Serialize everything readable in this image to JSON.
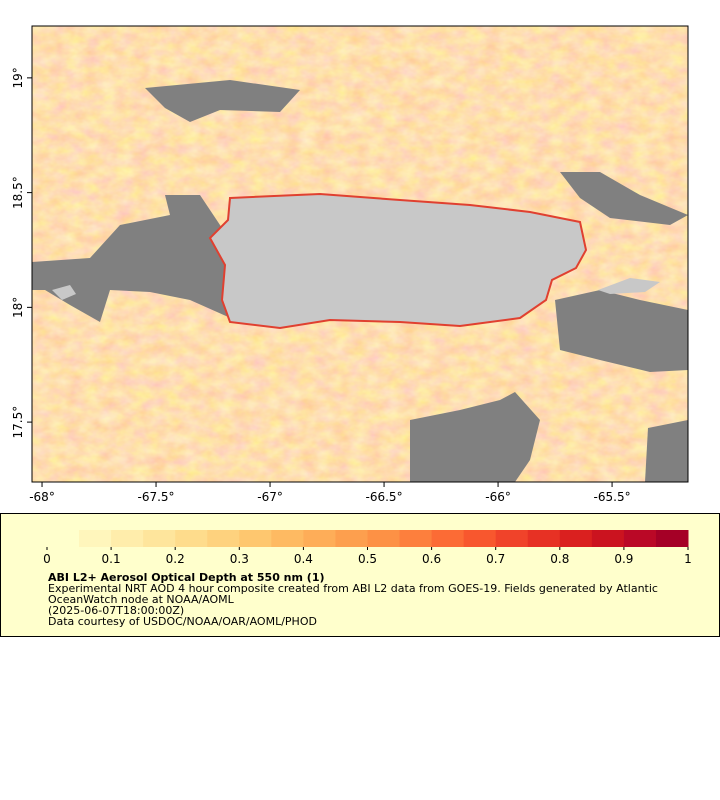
{
  "chart_data": {
    "type": "map",
    "xlim": [
      -68.044,
      -65.167
    ],
    "ylim": [
      17.239,
      19.226
    ],
    "xticks": [
      {
        "value": -68,
        "label": "-68°"
      },
      {
        "value": -67.5,
        "label": "-67.5°"
      },
      {
        "value": -67,
        "label": "-67°"
      },
      {
        "value": -66.5,
        "label": "-66.5°"
      },
      {
        "value": -66,
        "label": "-66°"
      },
      {
        "value": -65.5,
        "label": "-65.5°"
      }
    ],
    "yticks": [
      {
        "value": 19,
        "label": "19°"
      },
      {
        "value": 18.5,
        "label": "18.5°"
      },
      {
        "value": 18,
        "label": "18°"
      },
      {
        "value": 17.5,
        "label": "17.5°"
      }
    ],
    "colorbar": {
      "vlim": [
        0,
        1
      ],
      "ticks": [
        0,
        0.1,
        0.2,
        0.3,
        0.4,
        0.5,
        0.6,
        0.7,
        0.8,
        0.9,
        1
      ],
      "colors": [
        "#ffffcc",
        "#fff6bc",
        "#ffedab",
        "#fee59c",
        "#fedc8c",
        "#fed27e",
        "#fec76f",
        "#feba62",
        "#fead58",
        "#fd9f4e",
        "#fd9145",
        "#fd7f3d",
        "#fc6b35",
        "#f8572e",
        "#f0432a",
        "#e73124",
        "#da201f",
        "#cb131f",
        "#ba0826",
        "#a50026"
      ]
    },
    "title": "ABI L2+ Aerosol Optical Depth at 550 nm (1)",
    "caption_lines": [
      "Experimental NRT AOD 4 hour composite created from ABI L2 data from GOES-19. Fields generated by Atlantic",
      "OceanWatch node at NOAA/AOML",
      "(2025-06-07T18:00:00Z)",
      "Data courtesy of USDOC/NOAA/OAR/AOML/PHOD"
    ]
  }
}
